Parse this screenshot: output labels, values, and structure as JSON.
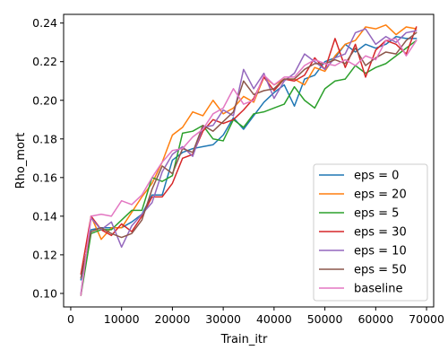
{
  "chart_data": {
    "type": "line",
    "title": "",
    "xlabel": "Train_itr",
    "ylabel": "Rho_mort",
    "xlim": [
      -1400,
      71400
    ],
    "ylim": [
      0.093,
      0.2445
    ],
    "xticks": [
      0,
      10000,
      20000,
      30000,
      40000,
      50000,
      60000,
      70000
    ],
    "yticks": [
      0.1,
      0.12,
      0.14,
      0.16,
      0.18,
      0.2,
      0.22,
      0.24
    ],
    "xtick_labels": [
      "0",
      "10000",
      "20000",
      "30000",
      "40000",
      "50000",
      "60000",
      "70000"
    ],
    "ytick_labels": [
      "0.10",
      "0.12",
      "0.14",
      "0.16",
      "0.18",
      "0.20",
      "0.22",
      "0.24"
    ],
    "grid": false,
    "legend_position": "bottom-right",
    "x": [
      2000,
      4000,
      6000,
      8000,
      10000,
      12000,
      14000,
      16000,
      18000,
      20000,
      22000,
      24000,
      26000,
      28000,
      30000,
      32000,
      34000,
      36000,
      38000,
      40000,
      42000,
      44000,
      46000,
      48000,
      50000,
      52000,
      54000,
      56000,
      58000,
      60000,
      62000,
      64000,
      66000,
      68000
    ],
    "series": [
      {
        "name": "eps = 0",
        "color": "#1f77b4",
        "values": [
          0.107,
          0.133,
          0.134,
          0.134,
          0.134,
          0.137,
          0.141,
          0.151,
          0.151,
          0.169,
          0.173,
          0.175,
          0.176,
          0.177,
          0.182,
          0.191,
          0.185,
          0.192,
          0.199,
          0.204,
          0.208,
          0.197,
          0.211,
          0.213,
          0.22,
          0.222,
          0.229,
          0.225,
          0.229,
          0.227,
          0.229,
          0.233,
          0.232,
          0.232
        ]
      },
      {
        "name": "eps = 20",
        "color": "#ff7f0e",
        "values": [
          0.099,
          0.14,
          0.128,
          0.134,
          0.134,
          0.142,
          0.15,
          0.157,
          0.168,
          0.182,
          0.186,
          0.194,
          0.192,
          0.2,
          0.193,
          0.196,
          0.202,
          0.199,
          0.212,
          0.208,
          0.211,
          0.211,
          0.208,
          0.217,
          0.215,
          0.223,
          0.229,
          0.231,
          0.238,
          0.237,
          0.239,
          0.234,
          0.238,
          0.237
        ]
      },
      {
        "name": "eps = 5",
        "color": "#2ca02c",
        "values": [
          0.099,
          0.131,
          0.133,
          0.133,
          0.138,
          0.143,
          0.143,
          0.16,
          0.158,
          0.161,
          0.183,
          0.184,
          0.187,
          0.18,
          0.179,
          0.19,
          0.186,
          0.193,
          0.194,
          0.196,
          0.198,
          0.207,
          0.2,
          0.196,
          0.206,
          0.21,
          0.211,
          0.218,
          0.214,
          0.217,
          0.219,
          0.223,
          0.227,
          0.231
        ]
      },
      {
        "name": "eps = 30",
        "color": "#d62728",
        "values": [
          0.11,
          0.14,
          0.133,
          0.13,
          0.136,
          0.132,
          0.14,
          0.15,
          0.15,
          0.157,
          0.17,
          0.172,
          0.184,
          0.19,
          0.188,
          0.19,
          0.195,
          0.201,
          0.212,
          0.205,
          0.211,
          0.21,
          0.213,
          0.222,
          0.216,
          0.232,
          0.217,
          0.229,
          0.212,
          0.226,
          0.231,
          0.229,
          0.224,
          0.238
        ]
      },
      {
        "name": "eps = 10",
        "color": "#9467bd",
        "values": [
          0.1,
          0.139,
          0.133,
          0.137,
          0.124,
          0.135,
          0.141,
          0.147,
          0.163,
          0.172,
          0.176,
          0.171,
          0.186,
          0.187,
          0.195,
          0.192,
          0.216,
          0.206,
          0.214,
          0.201,
          0.21,
          0.214,
          0.224,
          0.22,
          0.216,
          0.222,
          0.224,
          0.235,
          0.237,
          0.229,
          0.233,
          0.23,
          0.235,
          0.236
        ]
      },
      {
        "name": "eps = 50",
        "color": "#8c564b",
        "values": [
          0.108,
          0.132,
          0.134,
          0.131,
          0.129,
          0.131,
          0.138,
          0.154,
          0.166,
          0.162,
          0.175,
          0.173,
          0.187,
          0.184,
          0.189,
          0.194,
          0.21,
          0.203,
          0.205,
          0.206,
          0.211,
          0.211,
          0.216,
          0.219,
          0.219,
          0.221,
          0.219,
          0.227,
          0.218,
          0.222,
          0.225,
          0.224,
          0.231,
          0.235
        ]
      },
      {
        "name": "baseline",
        "color": "#e377c2",
        "values": [
          0.099,
          0.14,
          0.141,
          0.14,
          0.148,
          0.146,
          0.151,
          0.16,
          0.168,
          0.174,
          0.175,
          0.181,
          0.185,
          0.193,
          0.196,
          0.206,
          0.198,
          0.2,
          0.213,
          0.208,
          0.212,
          0.212,
          0.218,
          0.221,
          0.219,
          0.218,
          0.221,
          0.218,
          0.223,
          0.221,
          0.231,
          0.232,
          0.223,
          0.231
        ]
      }
    ]
  }
}
